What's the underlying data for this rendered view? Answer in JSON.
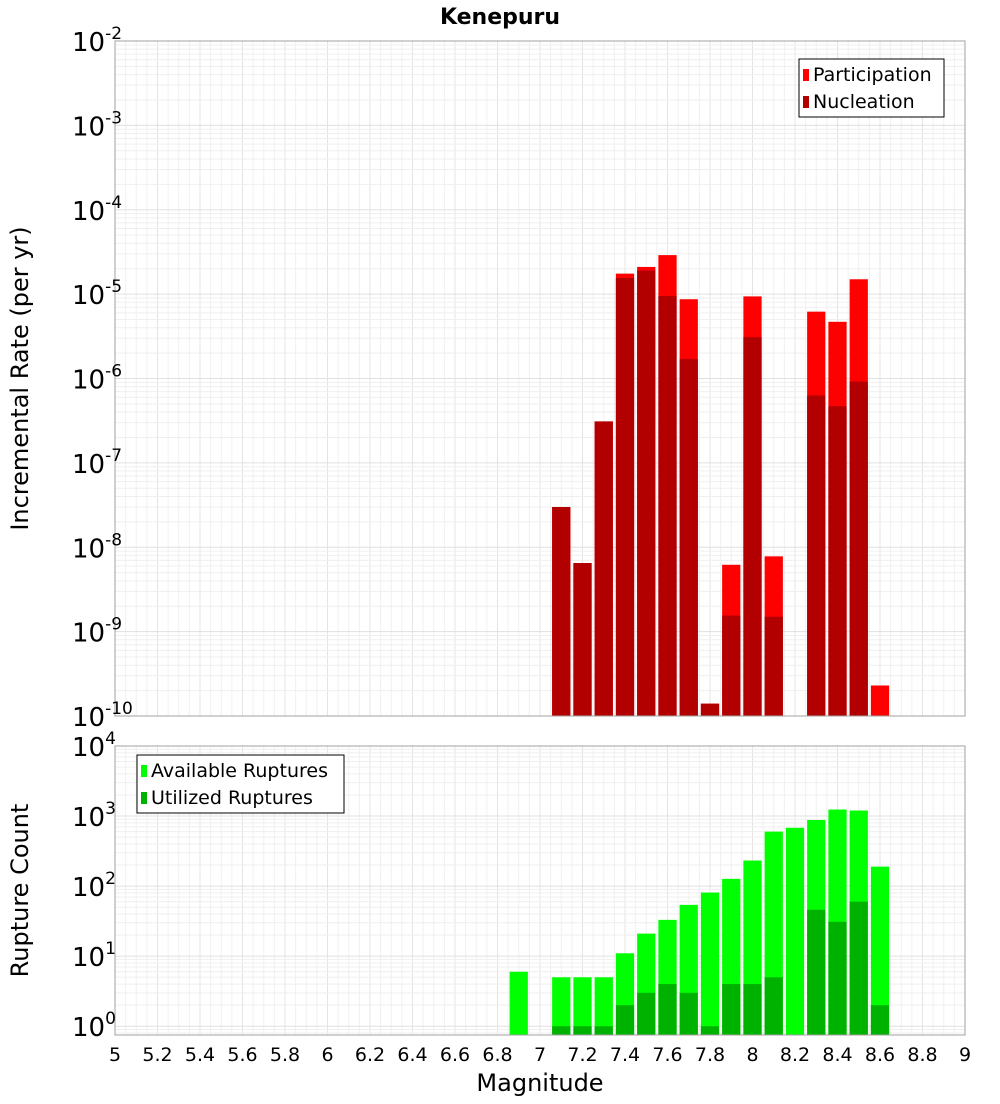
{
  "chart_data": [
    {
      "type": "bar",
      "title": "Kenepuru",
      "ylabel": "Incremental Rate (per yr)",
      "xlim": [
        5,
        9
      ],
      "ylim": [
        1e-10,
        0.01
      ],
      "yscale": "log",
      "grid": true,
      "legend_position": "top-right",
      "bar_width": 0.1,
      "x": [
        7.0,
        7.1,
        7.2,
        7.3,
        7.4,
        7.5,
        7.6,
        7.7,
        7.8,
        7.9,
        8.0,
        8.1,
        8.2,
        8.3,
        8.4,
        8.5,
        8.6,
        8.7
      ],
      "y_tick_labels": [
        {
          "base": "10",
          "exp": "-10"
        },
        {
          "base": "10",
          "exp": "-9"
        },
        {
          "base": "10",
          "exp": "-8"
        },
        {
          "base": "10",
          "exp": "-7"
        },
        {
          "base": "10",
          "exp": "-6"
        },
        {
          "base": "10",
          "exp": "-5"
        },
        {
          "base": "10",
          "exp": "-4"
        },
        {
          "base": "10",
          "exp": "-3"
        },
        {
          "base": "10",
          "exp": "-2"
        }
      ],
      "series": [
        {
          "name": "Participation",
          "color": "#ff0000",
          "values": [
            null,
            3e-08,
            6.5e-09,
            3.1e-07,
            1.75e-05,
            2.1e-05,
            2.9e-05,
            8.7e-06,
            1.4e-10,
            6.2e-09,
            9.4e-06,
            7.8e-09,
            null,
            6.2e-06,
            4.7e-06,
            1.5e-05,
            2.3e-10,
            null
          ]
        },
        {
          "name": "Nucleation",
          "color": "#b20000",
          "values": [
            null,
            3e-08,
            6.5e-09,
            3.1e-07,
            1.55e-05,
            1.9e-05,
            9.5e-06,
            1.7e-06,
            1.4e-10,
            1.55e-09,
            3.1e-06,
            1.5e-09,
            null,
            6.3e-07,
            4.7e-07,
            9.2e-07,
            null,
            null
          ]
        }
      ]
    },
    {
      "type": "bar",
      "ylabel": "Rupture Count",
      "xlabel": "Magnitude",
      "xlim": [
        5,
        9
      ],
      "ylim": [
        0.75,
        10000
      ],
      "yscale": "log",
      "grid": true,
      "legend_position": "top-left",
      "bar_width": 0.1,
      "x": [
        6.9,
        7.0,
        7.1,
        7.2,
        7.3,
        7.4,
        7.5,
        7.6,
        7.7,
        7.8,
        7.9,
        8.0,
        8.1,
        8.2,
        8.3,
        8.4,
        8.5,
        8.6,
        8.7
      ],
      "x_tick_labels": [
        "5",
        "5.2",
        "5.4",
        "5.6",
        "5.8",
        "6",
        "6.2",
        "6.4",
        "6.6",
        "6.8",
        "7",
        "7.2",
        "7.4",
        "7.6",
        "7.8",
        "8",
        "8.2",
        "8.4",
        "8.6",
        "8.8",
        "9"
      ],
      "y_tick_labels": [
        {
          "base": "10",
          "exp": "0"
        },
        {
          "base": "10",
          "exp": "1"
        },
        {
          "base": "10",
          "exp": "2"
        },
        {
          "base": "10",
          "exp": "3"
        },
        {
          "base": "10",
          "exp": "4"
        }
      ],
      "series": [
        {
          "name": "Available Ruptures",
          "color": "#00ff00",
          "values": [
            6,
            null,
            5,
            5,
            5,
            11,
            21,
            33,
            54,
            81,
            127,
            232,
            600,
            680,
            880,
            1240,
            1200,
            190,
            null
          ]
        },
        {
          "name": "Utilized Ruptures",
          "color": "#00b200",
          "values": [
            null,
            null,
            1,
            1,
            1,
            2,
            3,
            4,
            3,
            1,
            4,
            4,
            5,
            null,
            46,
            31,
            60,
            2,
            null
          ]
        }
      ]
    }
  ]
}
